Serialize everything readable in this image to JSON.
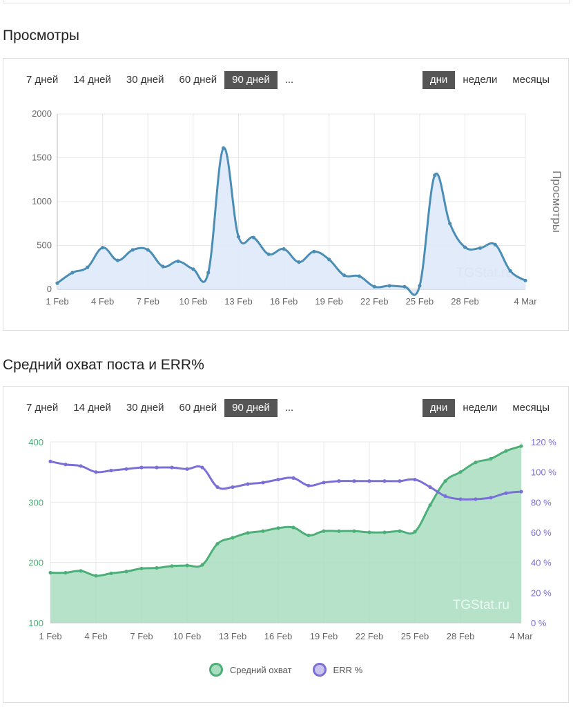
{
  "views_section": {
    "title": "Просмотры",
    "ranges": [
      "7 дней",
      "14 дней",
      "30 дней",
      "60 дней",
      "90 дней",
      "..."
    ],
    "active_range": "90 дней",
    "periods": [
      "дни",
      "недели",
      "месяцы"
    ],
    "active_period": "дни"
  },
  "reach_section": {
    "title": "Средний охват поста и ERR%",
    "ranges": [
      "7 дней",
      "14 дней",
      "30 дней",
      "60 дней",
      "90 дней",
      "..."
    ],
    "active_range": "90 дней",
    "periods": [
      "дни",
      "недели",
      "месяцы"
    ],
    "active_period": "дни",
    "legend": [
      {
        "label": "Средний охват",
        "color": "#4caf78"
      },
      {
        "label": "ERR %",
        "color": "#7a6fd6"
      }
    ]
  },
  "chart_data": [
    {
      "type": "area",
      "ylabel": "Просмотры",
      "watermark": "TGStat.ru",
      "x": [
        "1 Feb",
        "2 Feb",
        "3 Feb",
        "4 Feb",
        "5 Feb",
        "6 Feb",
        "7 Feb",
        "8 Feb",
        "9 Feb",
        "10 Feb",
        "11 Feb",
        "12 Feb",
        "13 Feb",
        "14 Feb",
        "15 Feb",
        "16 Feb",
        "17 Feb",
        "18 Feb",
        "19 Feb",
        "20 Feb",
        "21 Feb",
        "22 Feb",
        "23 Feb",
        "24 Feb",
        "25 Feb",
        "26 Feb",
        "27 Feb",
        "28 Feb",
        "1 Mar",
        "2 Mar",
        "3 Mar",
        "4 Mar"
      ],
      "x_ticks": [
        "1 Feb",
        "4 Feb",
        "7 Feb",
        "10 Feb",
        "13 Feb",
        "16 Feb",
        "19 Feb",
        "22 Feb",
        "25 Feb",
        "28 Feb",
        "4 Mar"
      ],
      "series": [
        {
          "values": [
            70,
            190,
            250,
            475,
            330,
            450,
            450,
            260,
            320,
            230,
            190,
            1610,
            600,
            590,
            400,
            460,
            310,
            430,
            340,
            160,
            150,
            30,
            40,
            30,
            40,
            1300,
            750,
            480,
            470,
            510,
            210,
            100
          ],
          "color": "#4a8db5"
        }
      ],
      "ylim": [
        0,
        2000
      ],
      "yticks": [
        0,
        500,
        1000,
        1500,
        2000
      ],
      "grid": true
    },
    {
      "type": "area",
      "watermark": "TGStat.ru",
      "x": [
        "1 Feb",
        "2 Feb",
        "3 Feb",
        "4 Feb",
        "5 Feb",
        "6 Feb",
        "7 Feb",
        "8 Feb",
        "9 Feb",
        "10 Feb",
        "11 Feb",
        "12 Feb",
        "13 Feb",
        "14 Feb",
        "15 Feb",
        "16 Feb",
        "17 Feb",
        "18 Feb",
        "19 Feb",
        "20 Feb",
        "21 Feb",
        "22 Feb",
        "23 Feb",
        "24 Feb",
        "25 Feb",
        "26 Feb",
        "27 Feb",
        "28 Feb",
        "1 Mar",
        "2 Mar",
        "3 Mar",
        "4 Mar"
      ],
      "x_ticks": [
        "1 Feb",
        "4 Feb",
        "7 Feb",
        "10 Feb",
        "13 Feb",
        "16 Feb",
        "19 Feb",
        "22 Feb",
        "25 Feb",
        "28 Feb",
        "4 Mar"
      ],
      "series": [
        {
          "name": "Средний охват",
          "axis": "left",
          "color": "#4caf78",
          "values": [
            183,
            183,
            186,
            178,
            182,
            185,
            190,
            191,
            194,
            195,
            196,
            231,
            241,
            249,
            252,
            257,
            258,
            245,
            252,
            252,
            252,
            250,
            250,
            252,
            251,
            295,
            335,
            350,
            366,
            372,
            385,
            393
          ]
        },
        {
          "name": "ERR %",
          "axis": "right",
          "color": "#7a6fd6",
          "values": [
            107,
            105,
            104,
            100,
            101,
            102,
            103,
            103,
            103,
            102,
            103,
            90,
            90,
            92,
            93,
            95,
            96,
            91,
            93,
            94,
            94,
            94,
            94,
            94,
            95,
            90,
            84,
            82,
            82,
            83,
            86,
            87
          ]
        }
      ],
      "ylim_left": [
        100,
        400
      ],
      "yticks_left": [
        100,
        200,
        300,
        400
      ],
      "ylim_right": [
        0,
        120
      ],
      "yticks_right": [
        "0 %",
        "20 %",
        "40 %",
        "60 %",
        "80 %",
        "100 %",
        "120 %"
      ],
      "grid": true,
      "legend": "bottom"
    }
  ]
}
